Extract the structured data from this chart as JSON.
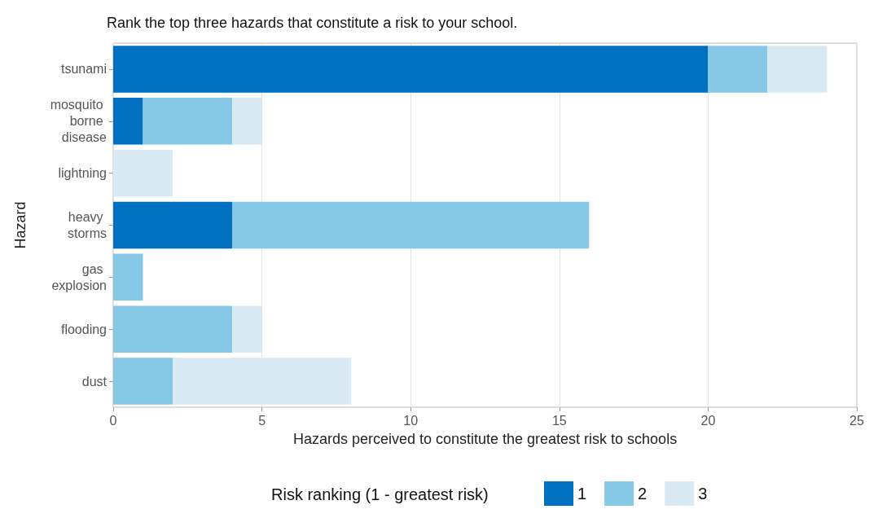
{
  "chart_data": {
    "type": "bar",
    "orientation": "horizontal",
    "stacked": true,
    "title": "Rank the top three hazards that constitute a risk to your school.",
    "xlabel": "Hazards perceived to constitute the greatest risk to schools",
    "ylabel": "Hazard",
    "legend_title": "Risk ranking (1 - greatest risk)",
    "categories": [
      "tsunami",
      "mosquito borne disease",
      "lightning",
      "heavy storms",
      "gas explosion",
      "flooding",
      "dust"
    ],
    "series": [
      {
        "name": "1",
        "color": "#0070c0",
        "values": [
          20,
          1,
          0,
          4,
          0,
          0,
          0
        ]
      },
      {
        "name": "2",
        "color": "#87c8e6",
        "values": [
          2,
          3,
          0,
          12,
          1,
          4,
          2
        ]
      },
      {
        "name": "3",
        "color": "#d9eaf5",
        "values": [
          2,
          1,
          2,
          0,
          0,
          1,
          6
        ]
      }
    ],
    "xlim": [
      0,
      25
    ],
    "xticks": [
      0,
      5,
      10,
      15,
      20,
      25
    ],
    "grid": "x",
    "legend": "bottom"
  }
}
